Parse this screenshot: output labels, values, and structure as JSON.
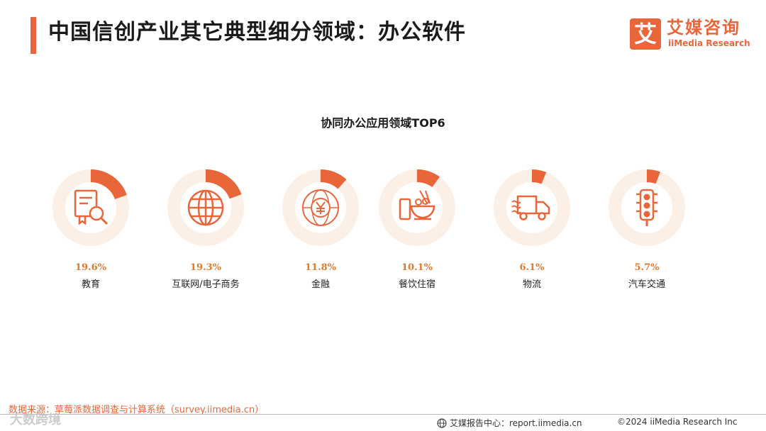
{
  "header": {
    "title": "中国信创产业其它典型细分领域：办公软件"
  },
  "logo": {
    "mark": "艾",
    "name_cn": "艾媒咨询",
    "name_en": "iiMedia Research"
  },
  "colors": {
    "accent": "#e8663a",
    "ring_track": "#fcefe6",
    "percent_text": "#e07a2c"
  },
  "chart_data": {
    "type": "donut",
    "title": "协同办公应用领域TOP6",
    "unit": "%",
    "categories": [
      "教育",
      "互联网/电子商务",
      "金融",
      "餐饮住宿",
      "物流",
      "汽车交通"
    ],
    "values": [
      19.6,
      19.3,
      11.8,
      10.1,
      6.1,
      5.7
    ],
    "labels": [
      "19.6%",
      "19.3%",
      "11.8%",
      "10.1%",
      "6.1%",
      "5.7%"
    ],
    "icons": [
      "certificate-search-icon",
      "globe-icon",
      "yen-globe-icon",
      "food-bowl-icon",
      "delivery-truck-icon",
      "traffic-light-icon"
    ]
  },
  "footer": {
    "source": "数据来源：草莓派数据调查与计算系统（survey.iimedia.cn）",
    "report_center": "艾媒报告中心：report.iimedia.cn",
    "copyright": "©2024  iiMedia Research  Inc",
    "watermark": "大数跨境"
  }
}
